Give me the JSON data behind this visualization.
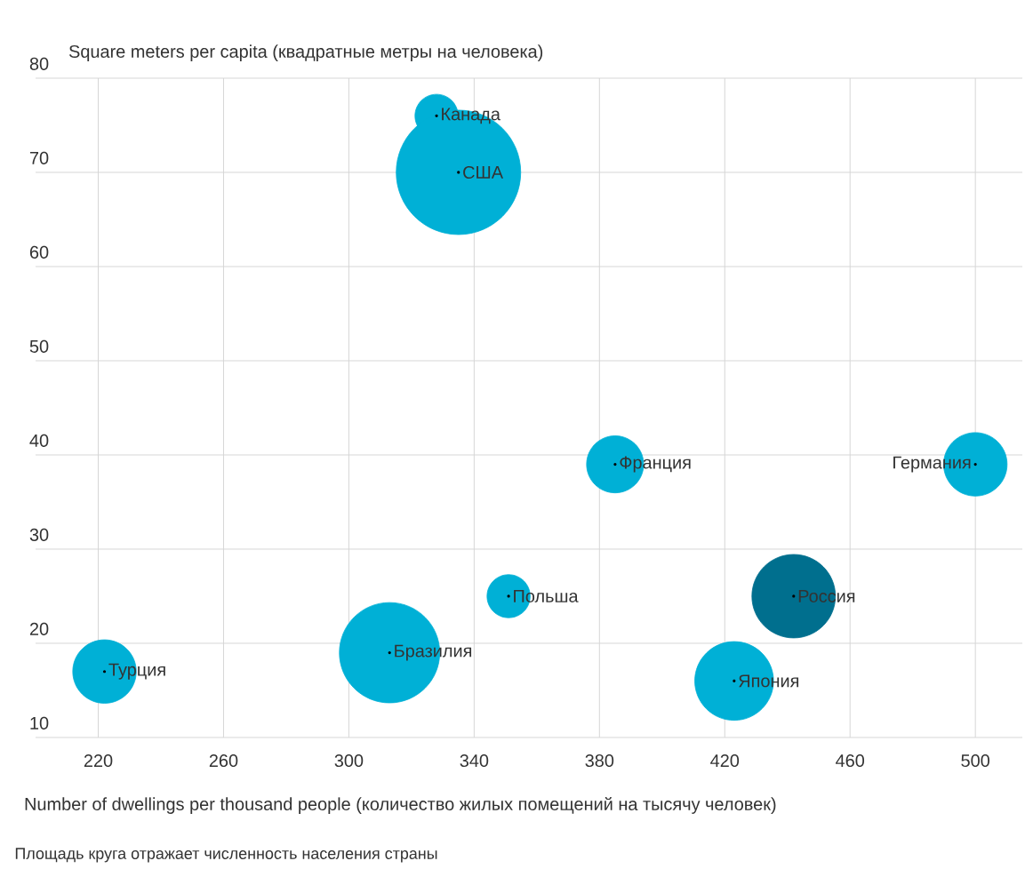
{
  "chart_data": {
    "type": "bubble",
    "xlabel": "Number of dwellings per thousand people (количество жилых помещений на тысячу человек)",
    "ylabel": "Square meters per capita (квадратные метры на человека)",
    "x": [
      328,
      335,
      385,
      500,
      351,
      442,
      313,
      222,
      423
    ],
    "values": [
      76,
      70,
      39,
      39,
      25,
      25,
      19,
      17,
      16
    ],
    "sizes": [
      0.12,
      1,
      0.21,
      0.26,
      0.12,
      0.45,
      0.65,
      0.26,
      0.4
    ],
    "colors": [
      "#00b0d6",
      "#00b0d6",
      "#00b0d6",
      "#00b0d6",
      "#00b0d6",
      "#006f8e",
      "#00b0d6",
      "#00b0d6",
      "#00b0d6"
    ],
    "annotations": [
      {
        "text": "Канада",
        "x": 328,
        "y": 76
      },
      {
        "text": "США",
        "x": 335,
        "y": 70
      },
      {
        "text": "Франция",
        "x": 385,
        "y": 39
      },
      {
        "text": "Германия",
        "x": 500,
        "y": 39
      },
      {
        "text": "Польша",
        "x": 351,
        "y": 25
      },
      {
        "text": "Россия",
        "x": 442,
        "y": 25
      },
      {
        "text": "Бразилия",
        "x": 313,
        "y": 19
      },
      {
        "text": "Турция",
        "x": 222,
        "y": 17
      },
      {
        "text": "Япония",
        "x": 423,
        "y": 16
      },
      "Площадь круга отражает численность населения страны"
    ],
    "xlim": [
      200,
      515
    ],
    "ylim": [
      10,
      80
    ],
    "xticks": [
      220,
      260,
      300,
      340,
      380,
      420,
      460,
      500
    ],
    "yticks": [
      10,
      20,
      30,
      40,
      50,
      60,
      70,
      80
    ],
    "grid": true
  }
}
